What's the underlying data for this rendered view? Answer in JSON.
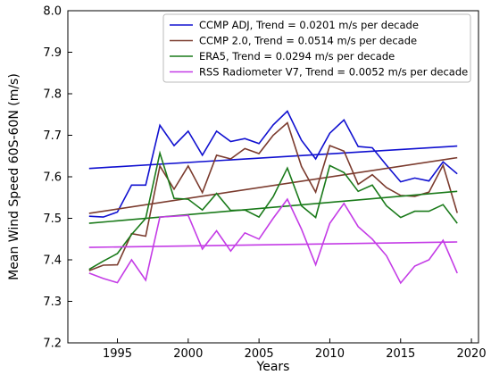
{
  "chart_data": {
    "type": "line",
    "xlabel": "Years",
    "ylabel": "Mean Wind Speed 60S-60N (m/s)",
    "xlim": [
      1991.5,
      2020.5
    ],
    "ylim": [
      7.2,
      8.0
    ],
    "xticks": [
      1995,
      2000,
      2005,
      2010,
      2015,
      2020
    ],
    "yticks": [
      7.2,
      7.3,
      7.4,
      7.5,
      7.6,
      7.7,
      7.8,
      7.9,
      8.0
    ],
    "grid": false,
    "legend_position": "top-right",
    "x": [
      1993,
      1994,
      1995,
      1996,
      1997,
      1998,
      1999,
      2000,
      2001,
      2002,
      2003,
      2004,
      2005,
      2006,
      2007,
      2008,
      2009,
      2010,
      2011,
      2012,
      2013,
      2014,
      2015,
      2016,
      2017,
      2018,
      2019
    ],
    "series": [
      {
        "name": "CCMP ADJ, Trend = 0.0201 m/s per decade",
        "color": "#1010d0",
        "values": [
          7.505,
          7.503,
          7.515,
          7.58,
          7.58,
          7.724,
          7.675,
          7.71,
          7.652,
          7.71,
          7.685,
          7.692,
          7.68,
          7.725,
          7.758,
          7.688,
          7.643,
          7.705,
          7.737,
          7.673,
          7.67,
          7.628,
          7.588,
          7.597,
          7.59,
          7.636,
          7.607
        ],
        "trend": [
          7.62,
          7.674
        ]
      },
      {
        "name": "CCMP 2.0, Trend = 0.0514 m/s per decade",
        "color": "#7b3b2e",
        "values": [
          7.374,
          7.387,
          7.388,
          7.463,
          7.457,
          7.626,
          7.57,
          7.626,
          7.562,
          7.652,
          7.643,
          7.668,
          7.656,
          7.7,
          7.73,
          7.625,
          7.563,
          7.675,
          7.662,
          7.582,
          7.605,
          7.574,
          7.555,
          7.553,
          7.563,
          7.628,
          7.513
        ],
        "trend": [
          7.512,
          7.646
        ]
      },
      {
        "name": "ERA5, Trend = 0.0294 m/s per decade",
        "color": "#1a7a1a",
        "values": [
          7.377,
          7.397,
          7.415,
          7.461,
          7.5,
          7.657,
          7.548,
          7.546,
          7.52,
          7.56,
          7.519,
          7.52,
          7.503,
          7.552,
          7.621,
          7.53,
          7.502,
          7.627,
          7.61,
          7.565,
          7.58,
          7.53,
          7.502,
          7.517,
          7.517,
          7.533,
          7.488
        ],
        "trend": [
          7.488,
          7.565
        ]
      },
      {
        "name": "RSS Radiometer V7, Trend = 0.0052 m/s per decade",
        "color": "#c43ce6",
        "values": [
          7.368,
          7.355,
          7.345,
          7.4,
          7.351,
          7.503,
          7.505,
          7.507,
          7.426,
          7.47,
          7.421,
          7.465,
          7.45,
          7.5,
          7.546,
          7.474,
          7.388,
          7.488,
          7.536,
          7.48,
          7.45,
          7.41,
          7.344,
          7.385,
          7.4,
          7.447,
          7.368
        ],
        "trend": [
          7.43,
          7.443
        ]
      }
    ]
  }
}
